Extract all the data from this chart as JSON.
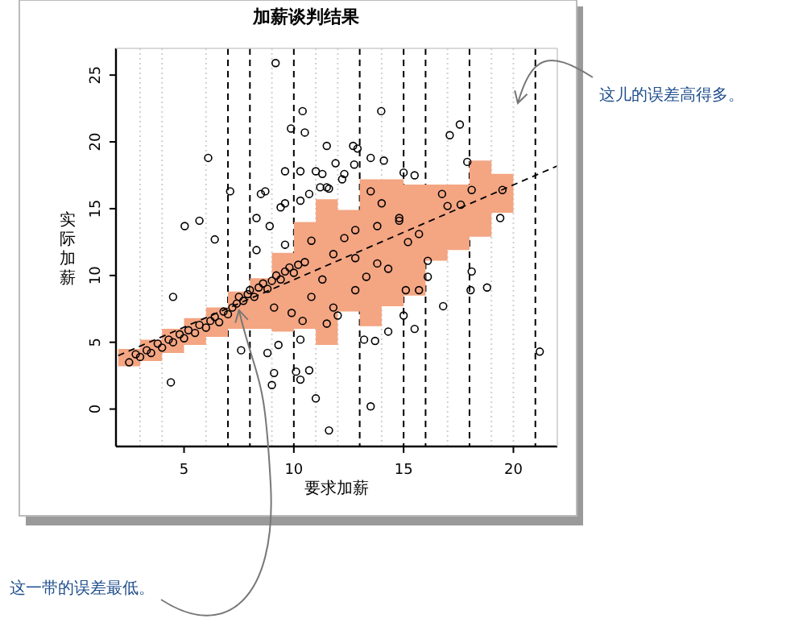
{
  "chart_data": {
    "type": "scatter",
    "title": "加薪谈判结果",
    "xlabel": "要求加薪",
    "ylabel": "实际加薪",
    "xlim": [
      1.9,
      22
    ],
    "ylim": [
      -2.8,
      27
    ],
    "xticks": [
      5,
      10,
      15,
      20
    ],
    "yticks": [
      0,
      5,
      10,
      15,
      20,
      25
    ],
    "marker": "circle",
    "series": [
      {
        "type": "step",
        "color": "#f4a582",
        "x": [
          2,
          3,
          4,
          5,
          6,
          7,
          8,
          9,
          10,
          11,
          12,
          13,
          14,
          15,
          16,
          17,
          18,
          19,
          20
        ],
        "values": [
          null,
          null,
          null,
          null,
          null,
          null,
          null,
          null,
          null,
          null,
          null,
          null,
          null,
          null,
          null,
          null,
          null,
          null,
          null
        ],
        "lower": [
          3.2,
          3.6,
          4.2,
          4.8,
          5.4,
          6.0,
          6.0,
          5.8,
          6.0,
          4.8,
          7.3,
          6.2,
          7.7,
          8.5,
          11.1,
          11.9,
          12.9,
          14.7,
          14.7
        ],
        "upper": [
          4.5,
          5.2,
          6.0,
          6.8,
          7.6,
          8.8,
          9.8,
          11.7,
          14.0,
          15.7,
          14.9,
          17.2,
          17.2,
          16.8,
          16.8,
          16.8,
          18.6,
          17.6,
          17.6
        ]
      },
      {
        "color": "#000000",
        "x": [
          9.17,
          13.98,
          10.4,
          9.87,
          10.5,
          17.56,
          17.1,
          6.1,
          11.5,
          12.7,
          12.9,
          13.5,
          14.1,
          11.9,
          12.75,
          9.6,
          10.3,
          11.0,
          11.3,
          12.3,
          15.0,
          15.5,
          11.2,
          11.6,
          12.2,
          7.1,
          8.7,
          8.5,
          10.7,
          11.5,
          9.6,
          10.3,
          9.4,
          17.9,
          19.4,
          13.5,
          14.0,
          14.8,
          16.75,
          17.0,
          17.6,
          18.1,
          19.5,
          5.03,
          5.7,
          6.4,
          8.3,
          8.9,
          8.3,
          9.6,
          4.5,
          4.4,
          7.6,
          8.8,
          9.3,
          10.3,
          10.1,
          10.7,
          10.3,
          9.0,
          9.1,
          11.0,
          11.6,
          13.5,
          13.7,
          14.3,
          15.0,
          15.5,
          15.1,
          15.7,
          16.8,
          18.1,
          18.05,
          18.8,
          21.2,
          12.0,
          11.5,
          13.2,
          16.1,
          16.1,
          13.3,
          10.8,
          11.8,
          12.3,
          12.8,
          13.8,
          14.8,
          15.2,
          15.7,
          12.8,
          13.8,
          14.3,
          11.3,
          10.8,
          11.8,
          12.8,
          9.9,
          10.4,
          9.1,
          2.5,
          2.8,
          3.0,
          3.3,
          3.5,
          3.8,
          4.0,
          4.3,
          4.5,
          4.8,
          5.0,
          5.2,
          5.5,
          5.7,
          6.0,
          6.2,
          6.4,
          6.6,
          6.8,
          7.0,
          7.2,
          7.4,
          7.5,
          7.7,
          7.9,
          8.0,
          8.2,
          8.4,
          8.6,
          8.8,
          9.0,
          9.2,
          9.4,
          9.6,
          9.8,
          10.0,
          10.2,
          10.5
        ],
        "values": [
          25.9,
          22.3,
          22.3,
          21.0,
          20.7,
          21.3,
          20.5,
          18.8,
          19.7,
          19.7,
          19.5,
          18.8,
          18.6,
          18.4,
          18.3,
          17.8,
          17.8,
          17.8,
          17.6,
          17.6,
          17.7,
          17.5,
          16.6,
          16.5,
          17.2,
          16.3,
          16.3,
          16.1,
          16.1,
          16.6,
          15.4,
          15.6,
          15.1,
          18.5,
          14.3,
          16.3,
          15.4,
          14.3,
          16.1,
          15.2,
          15.3,
          16.4,
          16.4,
          13.7,
          14.1,
          12.7,
          14.3,
          13.7,
          11.9,
          12.3,
          8.4,
          2.0,
          4.4,
          4.2,
          4.8,
          5.2,
          2.8,
          2.9,
          2.2,
          1.8,
          2.7,
          0.8,
          -1.6,
          0.2,
          5.1,
          5.8,
          7.0,
          6.0,
          8.9,
          8.9,
          7.7,
          10.3,
          8.9,
          9.1,
          4.3,
          7.0,
          6.4,
          5.2,
          11.1,
          9.9,
          9.9,
          12.6,
          11.6,
          12.8,
          13.4,
          13.7,
          14.1,
          12.5,
          13.1,
          11.3,
          10.9,
          10.5,
          9.7,
          8.4,
          7.6,
          8.9,
          7.2,
          6.6,
          7.6,
          3.5,
          4.1,
          3.9,
          4.4,
          4.2,
          4.9,
          4.6,
          5.2,
          5.0,
          5.6,
          5.3,
          5.9,
          5.7,
          6.3,
          6.1,
          6.6,
          6.9,
          6.5,
          7.3,
          7.1,
          7.6,
          7.9,
          8.4,
          8.1,
          8.6,
          8.9,
          8.4,
          9.1,
          9.4,
          9.0,
          9.6,
          10.0,
          9.7,
          10.3,
          10.6,
          10.2,
          10.8,
          11.0
        ]
      },
      {
        "type": "line",
        "color": "#000000",
        "line_style": "dashed",
        "marker": "none",
        "x": [
          2,
          22
        ],
        "values": [
          4.0,
          18.2
        ]
      }
    ],
    "ref_lines": [
      {
        "axis": "x",
        "value": 7,
        "color": "#000000",
        "line_style": "dashed"
      },
      {
        "axis": "x",
        "value": 8,
        "color": "#000000",
        "line_style": "dashed"
      },
      {
        "axis": "x",
        "value": 10,
        "color": "#000000",
        "line_style": "dashed"
      },
      {
        "axis": "x",
        "value": 13,
        "color": "#000000",
        "line_style": "dashed"
      },
      {
        "axis": "x",
        "value": 15,
        "color": "#000000",
        "line_style": "dashed"
      },
      {
        "axis": "x",
        "value": 16,
        "color": "#000000",
        "line_style": "dashed"
      },
      {
        "axis": "x",
        "value": 18,
        "color": "#000000",
        "line_style": "dashed"
      },
      {
        "axis": "x",
        "value": 21,
        "color": "#000000",
        "line_style": "dashed"
      },
      {
        "axis": "x",
        "value": 3,
        "color": "#d0d0d0",
        "line_style": "dotted"
      },
      {
        "axis": "x",
        "value": 4,
        "color": "#d0d0d0",
        "line_style": "dotted"
      },
      {
        "axis": "x",
        "value": 6,
        "color": "#d0d0d0",
        "line_style": "dotted"
      },
      {
        "axis": "x",
        "value": 9,
        "color": "#d0d0d0",
        "line_style": "dotted"
      },
      {
        "axis": "x",
        "value": 11,
        "color": "#d0d0d0",
        "line_style": "dotted"
      },
      {
        "axis": "x",
        "value": 12,
        "color": "#d0d0d0",
        "line_style": "dotted"
      },
      {
        "axis": "x",
        "value": 14,
        "color": "#d0d0d0",
        "line_style": "dotted"
      },
      {
        "axis": "x",
        "value": 17,
        "color": "#d0d0d0",
        "line_style": "dotted"
      },
      {
        "axis": "x",
        "value": 19,
        "color": "#d0d0d0",
        "line_style": "dotted"
      },
      {
        "axis": "x",
        "value": 20,
        "color": "#d0d0d0",
        "line_style": "dotted"
      }
    ],
    "annotations": [
      {
        "text": "这儿的误差高得多。",
        "x": 20.2,
        "y": 22.9
      },
      {
        "text": "这一带的误差最低。",
        "x": 7.5,
        "y": 7.4
      }
    ]
  }
}
